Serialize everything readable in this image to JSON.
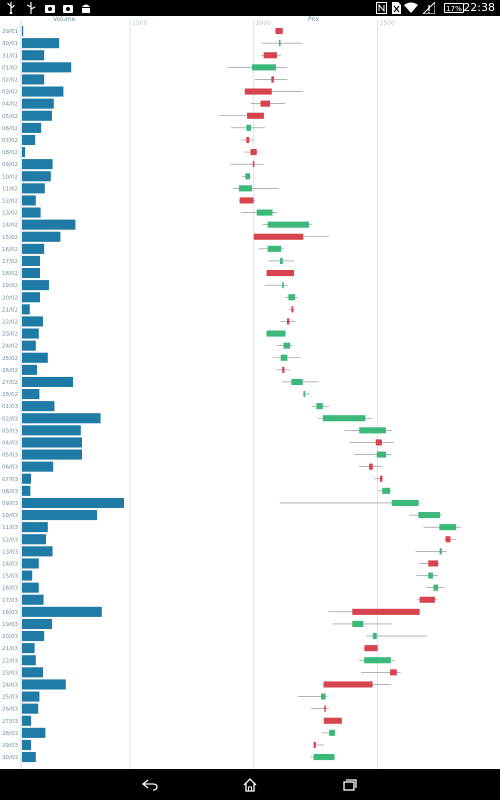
{
  "status_bar": {
    "time": "22:38",
    "battery": "17%",
    "icons": [
      "usb-icon",
      "usb-debug-icon",
      "camera-notification-icon",
      "android-icon",
      "nfc-icon",
      "no-sim-icon",
      "wifi-icon",
      "signal-icon",
      "battery-icon"
    ]
  },
  "nav_bar": {
    "buttons": [
      "back-icon",
      "home-icon",
      "recent-apps-icon"
    ]
  },
  "chart_data": {
    "type": "candlestick-with-volume-bars",
    "volume_label": "Volume",
    "price_label": "Prix",
    "price_ticks": [
      1500,
      2000,
      2500
    ],
    "price_range": [
      1000,
      3000
    ],
    "dates": [
      "29/01",
      "30/01",
      "31/01",
      "01/02",
      "02/02",
      "03/02",
      "04/02",
      "05/02",
      "06/02",
      "07/02",
      "08/02",
      "09/02",
      "10/02",
      "11/02",
      "12/02",
      "13/02",
      "14/02",
      "15/02",
      "16/02",
      "17/02",
      "18/02",
      "19/02",
      "20/02",
      "21/02",
      "22/02",
      "23/02",
      "24/02",
      "25/02",
      "26/02",
      "27/02",
      "28/02",
      "01/03",
      "02/03",
      "03/03",
      "04/03",
      "05/03",
      "06/03",
      "07/03",
      "08/03",
      "09/03",
      "10/03",
      "11/03",
      "12/03",
      "13/03",
      "14/03",
      "15/03",
      "16/03",
      "17/03",
      "18/03",
      "19/03",
      "20/03",
      "21/03",
      "22/03",
      "23/03",
      "24/03",
      "25/03",
      "26/03",
      "27/03",
      "28/03",
      "29/03",
      "30/03"
    ],
    "volume": [
      2,
      62,
      37,
      82,
      37,
      69,
      53,
      50,
      32,
      22,
      5,
      51,
      48,
      38,
      23,
      31,
      89,
      64,
      37,
      30,
      30,
      45,
      30,
      13,
      35,
      28,
      23,
      43,
      25,
      85,
      29,
      54,
      131,
      98,
      100,
      100,
      52,
      15,
      14,
      170,
      125,
      43,
      40,
      51,
      28,
      17,
      28,
      36,
      133,
      50,
      37,
      21,
      23,
      35,
      73,
      29,
      27,
      15,
      39,
      15,
      23
    ],
    "candles": [
      {
        "open": 2117,
        "close": 2088,
        "high": 2121,
        "low": 2084,
        "dir": "down"
      },
      {
        "open": 2102,
        "close": 2106,
        "high": 2195,
        "low": 2031,
        "dir": "up"
      },
      {
        "open": 2094,
        "close": 2040,
        "high": 2111,
        "low": 2028,
        "dir": "down"
      },
      {
        "open": 1993,
        "close": 2090,
        "high": 2135,
        "low": 1893,
        "dir": "up"
      },
      {
        "open": 2082,
        "close": 2071,
        "high": 2136,
        "low": 2005,
        "dir": "down"
      },
      {
        "open": 2073,
        "close": 1964,
        "high": 2200,
        "low": 1962,
        "dir": "down"
      },
      {
        "open": 2066,
        "close": 2027,
        "high": 2126,
        "low": 1987,
        "dir": "down"
      },
      {
        "open": 2041,
        "close": 1973,
        "high": 2042,
        "low": 1858,
        "dir": "down"
      },
      {
        "open": 1970,
        "close": 1989,
        "high": 2045,
        "low": 1908,
        "dir": "up"
      },
      {
        "open": 1982,
        "close": 1970,
        "high": 2000,
        "low": 1949,
        "dir": "down"
      },
      {
        "open": 2012,
        "close": 1987,
        "high": 2020,
        "low": 1961,
        "dir": "down"
      },
      {
        "open": 1997,
        "close": 1996,
        "high": 2040,
        "low": 1906,
        "dir": "down"
      },
      {
        "open": 1966,
        "close": 1985,
        "high": 1990,
        "low": 1953,
        "dir": "up"
      },
      {
        "open": 1940,
        "close": 1993,
        "high": 2100,
        "low": 1918,
        "dir": "up"
      },
      {
        "open": 1999,
        "close": 1943,
        "high": 2005,
        "low": 1941,
        "dir": "down"
      },
      {
        "open": 2012,
        "close": 2076,
        "high": 2096,
        "low": 1948,
        "dir": "up"
      },
      {
        "open": 2056,
        "close": 2223,
        "high": 2233,
        "low": 2036,
        "dir": "up"
      },
      {
        "open": 2200,
        "close": 2000,
        "high": 2305,
        "low": 1998,
        "dir": "down"
      },
      {
        "open": 2056,
        "close": 2111,
        "high": 2120,
        "low": 2021,
        "dir": "up"
      },
      {
        "open": 2106,
        "close": 2117,
        "high": 2164,
        "low": 2060,
        "dir": "up"
      },
      {
        "open": 2163,
        "close": 2052,
        "high": 2164,
        "low": 2051,
        "dir": "down"
      },
      {
        "open": 2115,
        "close": 2121,
        "high": 2139,
        "low": 2045,
        "dir": "up"
      },
      {
        "open": 2140,
        "close": 2167,
        "high": 2177,
        "low": 2126,
        "dir": "up"
      },
      {
        "open": 2160,
        "close": 2152,
        "high": 2165,
        "low": 2143,
        "dir": "down"
      },
      {
        "open": 2144,
        "close": 2134,
        "high": 2169,
        "low": 2108,
        "dir": "down"
      },
      {
        "open": 2052,
        "close": 2128,
        "high": 2130,
        "low": 2049,
        "dir": "up"
      },
      {
        "open": 2120,
        "close": 2147,
        "high": 2155,
        "low": 2092,
        "dir": "up"
      },
      {
        "open": 2109,
        "close": 2136,
        "high": 2188,
        "low": 2076,
        "dir": "up"
      },
      {
        "open": 2124,
        "close": 2115,
        "high": 2145,
        "low": 2092,
        "dir": "down"
      },
      {
        "open": 2152,
        "close": 2198,
        "high": 2264,
        "low": 2114,
        "dir": "up"
      },
      {
        "open": 2201,
        "close": 2208,
        "high": 2229,
        "low": 2197,
        "dir": "up"
      },
      {
        "open": 2253,
        "close": 2279,
        "high": 2305,
        "low": 2234,
        "dir": "up"
      },
      {
        "open": 2279,
        "close": 2451,
        "high": 2482,
        "low": 2260,
        "dir": "up"
      },
      {
        "open": 2426,
        "close": 2534,
        "high": 2558,
        "low": 2367,
        "dir": "up"
      },
      {
        "open": 2518,
        "close": 2493,
        "high": 2566,
        "low": 2388,
        "dir": "down"
      },
      {
        "open": 2497,
        "close": 2535,
        "high": 2556,
        "low": 2406,
        "dir": "up"
      },
      {
        "open": 2481,
        "close": 2466,
        "high": 2519,
        "low": 2425,
        "dir": "down"
      },
      {
        "open": 2520,
        "close": 2510,
        "high": 2522,
        "low": 2488,
        "dir": "down"
      },
      {
        "open": 2519,
        "close": 2551,
        "high": 2554,
        "low": 2503,
        "dir": "up"
      },
      {
        "open": 2558,
        "close": 2666,
        "high": 2674,
        "low": 2105,
        "dir": "up"
      },
      {
        "open": 2665,
        "close": 2753,
        "high": 2760,
        "low": 2628,
        "dir": "up"
      },
      {
        "open": 2750,
        "close": 2818,
        "high": 2838,
        "low": 2686,
        "dir": "up"
      },
      {
        "open": 2795,
        "close": 2775,
        "high": 2820,
        "low": 2769,
        "dir": "down"
      },
      {
        "open": 2751,
        "close": 2760,
        "high": 2780,
        "low": 2654,
        "dir": "up"
      },
      {
        "open": 2745,
        "close": 2705,
        "high": 2749,
        "low": 2668,
        "dir": "down"
      },
      {
        "open": 2705,
        "close": 2724,
        "high": 2744,
        "low": 2657,
        "dir": "up"
      },
      {
        "open": 2726,
        "close": 2745,
        "high": 2769,
        "low": 2697,
        "dir": "up"
      },
      {
        "open": 2732,
        "close": 2670,
        "high": 2744,
        "low": 2659,
        "dir": "down"
      },
      {
        "open": 2670,
        "close": 2398,
        "high": 2676,
        "low": 2301,
        "dir": "down"
      },
      {
        "open": 2398,
        "close": 2443,
        "high": 2558,
        "low": 2319,
        "dir": "up"
      },
      {
        "open": 2481,
        "close": 2497,
        "high": 2701,
        "low": 2455,
        "dir": "up"
      },
      {
        "open": 2500,
        "close": 2447,
        "high": 2506,
        "low": 2444,
        "dir": "down"
      },
      {
        "open": 2446,
        "close": 2554,
        "high": 2570,
        "low": 2425,
        "dir": "up"
      },
      {
        "open": 2578,
        "close": 2551,
        "high": 2594,
        "low": 2434,
        "dir": "down"
      },
      {
        "open": 2480,
        "close": 2282,
        "high": 2555,
        "low": 2278,
        "dir": "down"
      },
      {
        "open": 2272,
        "close": 2290,
        "high": 2297,
        "low": 2178,
        "dir": "up"
      },
      {
        "open": 2288,
        "close": 2285,
        "high": 2304,
        "low": 2231,
        "dir": "down"
      },
      {
        "open": 2356,
        "close": 2283,
        "high": 2359,
        "low": 2283,
        "dir": "down"
      },
      {
        "open": 2305,
        "close": 2328,
        "high": 2329,
        "low": 2276,
        "dir": "up"
      },
      {
        "open": 2251,
        "close": 2242,
        "high": 2284,
        "low": 2241,
        "dir": "down"
      },
      {
        "open": 2242,
        "close": 2326,
        "high": 2330,
        "low": 2228,
        "dir": "up"
      }
    ],
    "colors": {
      "up": "#3cb97a",
      "down": "#d6454f",
      "volume": "#1f7aa6",
      "grid": "#dfe3e6",
      "label": "#6b8fa3"
    }
  }
}
